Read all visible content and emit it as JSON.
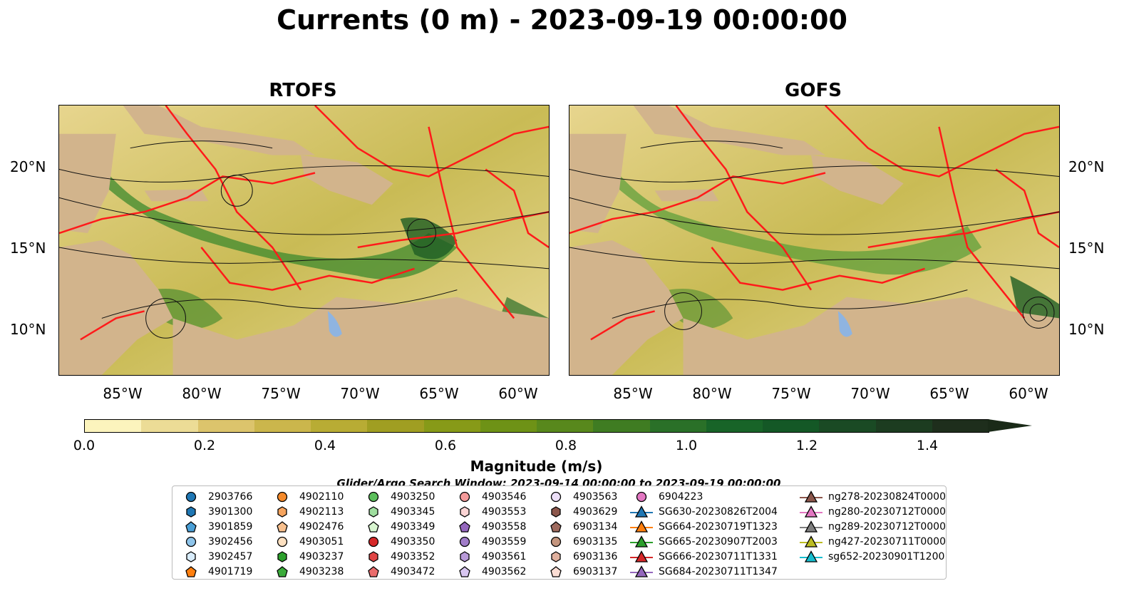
{
  "title": "Currents (0 m) - 2023-09-19 00:00:00",
  "panels": [
    {
      "title": "RTOFS"
    },
    {
      "title": "GOFS"
    }
  ],
  "axes": {
    "lon_labels": [
      "85°W",
      "80°W",
      "75°W",
      "70°W",
      "65°W",
      "60°W"
    ],
    "lat_labels": [
      "20°N",
      "15°N",
      "10°N"
    ]
  },
  "colorbar": {
    "label": "Magnitude (m/s)",
    "ticks": [
      "0.0",
      "0.2",
      "0.4",
      "0.6",
      "0.8",
      "1.0",
      "1.2",
      "1.4"
    ],
    "range": [
      0,
      1.5
    ],
    "colors": [
      "#fcf4bd",
      "#ecdc96",
      "#dcc46c",
      "#cbb64c",
      "#b8ac34",
      "#a09e22",
      "#879a18",
      "#6e9216",
      "#58881c",
      "#3f7c22",
      "#2a7028",
      "#186428",
      "#145826",
      "#1a4a24",
      "#1c3c20",
      "#1e2e1c"
    ],
    "extend": "max"
  },
  "subtitle": "Glider/Argo Search Window: 2023-09-14 00:00:00 to 2023-09-19 00:00:00",
  "legend": {
    "columns": [
      [
        {
          "label": "2903766",
          "marker": "circle",
          "color": "#1f77b4"
        },
        {
          "label": "3901300",
          "marker": "hexagon",
          "color": "#1f77b4"
        },
        {
          "label": "3901859",
          "marker": "pentagon",
          "color": "#4a9fd6"
        },
        {
          "label": "3902456",
          "marker": "circle",
          "color": "#8ec4ea"
        },
        {
          "label": "3902457",
          "marker": "hexagon",
          "color": "#d8ecfb"
        },
        {
          "label": "4901719",
          "marker": "pentagon",
          "color": "#ff7f0e"
        }
      ],
      [
        {
          "label": "4902110",
          "marker": "circle",
          "color": "#f58a2a"
        },
        {
          "label": "4902113",
          "marker": "hexagon",
          "color": "#f6a45e"
        },
        {
          "label": "4902476",
          "marker": "pentagon",
          "color": "#f8c08e"
        },
        {
          "label": "4903051",
          "marker": "circle",
          "color": "#fde0c0"
        },
        {
          "label": "4903237",
          "marker": "hexagon",
          "color": "#2ca02c"
        },
        {
          "label": "4903238",
          "marker": "pentagon",
          "color": "#3aab3a"
        }
      ],
      [
        {
          "label": "4903250",
          "marker": "circle",
          "color": "#5cbf5c"
        },
        {
          "label": "4903345",
          "marker": "hexagon",
          "color": "#9fde9f"
        },
        {
          "label": "4903349",
          "marker": "pentagon",
          "color": "#d8f5d0"
        },
        {
          "label": "4903350",
          "marker": "circle",
          "color": "#d62728"
        },
        {
          "label": "4903352",
          "marker": "hexagon",
          "color": "#e04545"
        },
        {
          "label": "4903472",
          "marker": "pentagon",
          "color": "#ea6c6c"
        }
      ],
      [
        {
          "label": "4903546",
          "marker": "circle",
          "color": "#f49a9a"
        },
        {
          "label": "4903553",
          "marker": "hexagon",
          "color": "#fbd4d4"
        },
        {
          "label": "4903558",
          "marker": "pentagon",
          "color": "#9467bd"
        },
        {
          "label": "4903559",
          "marker": "circle",
          "color": "#a07cc8"
        },
        {
          "label": "4903561",
          "marker": "hexagon",
          "color": "#b89ad8"
        },
        {
          "label": "4903562",
          "marker": "pentagon",
          "color": "#d8c6f0"
        }
      ],
      [
        {
          "label": "4903563",
          "marker": "circle",
          "color": "#ecdff8"
        },
        {
          "label": "4903629",
          "marker": "hexagon",
          "color": "#8c564b"
        },
        {
          "label": "6903134",
          "marker": "pentagon",
          "color": "#9e6a5e"
        },
        {
          "label": "6903135",
          "marker": "circle",
          "color": "#c4957e"
        },
        {
          "label": "6903136",
          "marker": "hexagon",
          "color": "#e0b09e"
        },
        {
          "label": "6903137",
          "marker": "pentagon",
          "color": "#fbddd4"
        }
      ],
      [
        {
          "label": "6904223",
          "marker": "circle",
          "color": "#e377c2"
        },
        {
          "label": "SG630-20230826T2004",
          "marker": "triangle",
          "color": "#1f77b4"
        },
        {
          "label": "SG664-20230719T1323",
          "marker": "triangle",
          "color": "#ff7f0e"
        },
        {
          "label": "SG665-20230907T2003",
          "marker": "triangle",
          "color": "#2ca02c"
        },
        {
          "label": "SG666-20230711T1331",
          "marker": "triangle",
          "color": "#d62728"
        },
        {
          "label": "SG684-20230711T1347",
          "marker": "triangle",
          "color": "#9467bd"
        }
      ],
      [
        {
          "label": "ng278-20230824T0000",
          "marker": "triangle",
          "color": "#8c564b"
        },
        {
          "label": "ng280-20230712T0000",
          "marker": "triangle",
          "color": "#e377c2"
        },
        {
          "label": "ng289-20230712T0000",
          "marker": "triangle",
          "color": "#7f7f7f"
        },
        {
          "label": "ng427-20230711T0000",
          "marker": "triangle",
          "color": "#bcbd22"
        },
        {
          "label": "sg652-20230901T1200",
          "marker": "triangle",
          "color": "#17becf"
        }
      ]
    ]
  }
}
